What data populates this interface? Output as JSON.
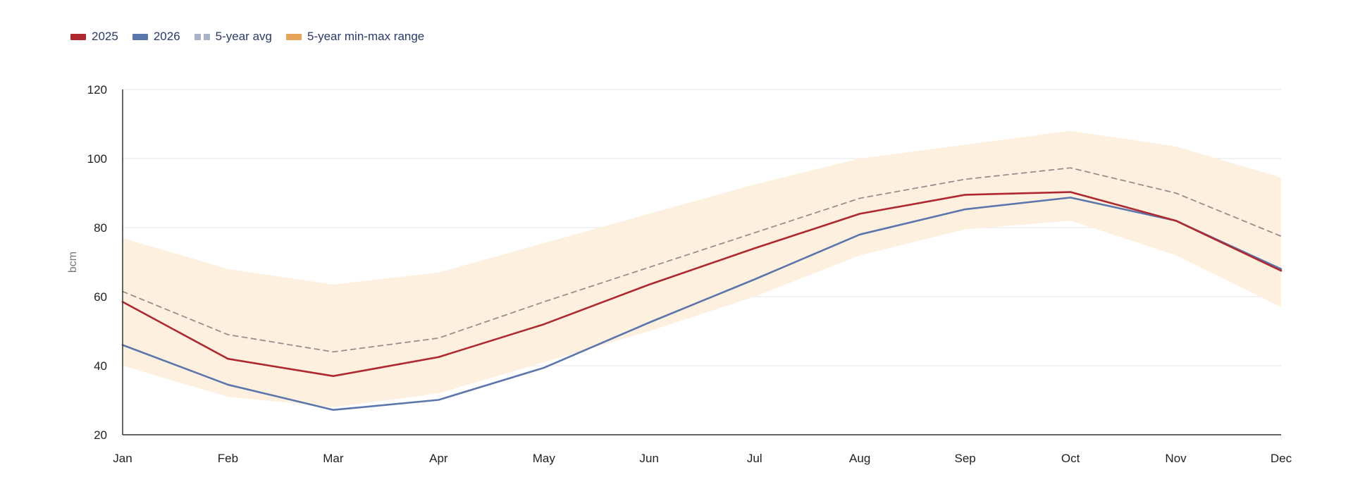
{
  "legend": [
    {
      "label": "2025",
      "color": "#b0282f",
      "style": "solid"
    },
    {
      "label": "2026",
      "color": "#5b76ad",
      "style": "solid"
    },
    {
      "label": "5-year avg",
      "color": "#a9b3c8",
      "style": "dashed"
    },
    {
      "label": "5-year min-max range",
      "color": "#e8a55a",
      "style": "band"
    }
  ],
  "chart_data": {
    "type": "line",
    "title": "",
    "xlabel": "",
    "ylabel": "bcm",
    "ylim": [
      20,
      120
    ],
    "yticks": [
      20,
      40,
      60,
      80,
      100,
      120
    ],
    "grid": true,
    "categories": [
      "Jan",
      "Feb",
      "Mar",
      "Apr",
      "May",
      "Jun",
      "Jul",
      "Aug",
      "Sep",
      "Oct",
      "Nov",
      "Dec"
    ],
    "series": [
      {
        "name": "2025",
        "color": "#b0282f",
        "values": [
          58.5,
          42,
          37,
          42.5,
          52,
          63.5,
          74,
          84,
          89.5,
          90.3,
          82,
          67.5
        ]
      },
      {
        "name": "2026",
        "color": "#5b76ad",
        "values": [
          46,
          34.5,
          27.2,
          30.1,
          39.4,
          52.5,
          65,
          78,
          85.3,
          88.7,
          82,
          68
        ]
      },
      {
        "name": "5-year avg",
        "color": "#9e8c8c",
        "dashed": true,
        "values": [
          61.5,
          49,
          44,
          48,
          58.5,
          68.5,
          78.5,
          88.5,
          94,
          97.3,
          90,
          77.5
        ]
      }
    ],
    "range": {
      "name": "5-year min-max range",
      "color": "#fdf0de",
      "min": [
        40,
        31,
        28,
        32,
        41,
        50,
        60,
        72,
        79.5,
        82,
        72,
        57
      ],
      "max": [
        77,
        68,
        63.5,
        67,
        75.5,
        84,
        92.5,
        100,
        104,
        108,
        103.5,
        94.5
      ]
    }
  }
}
